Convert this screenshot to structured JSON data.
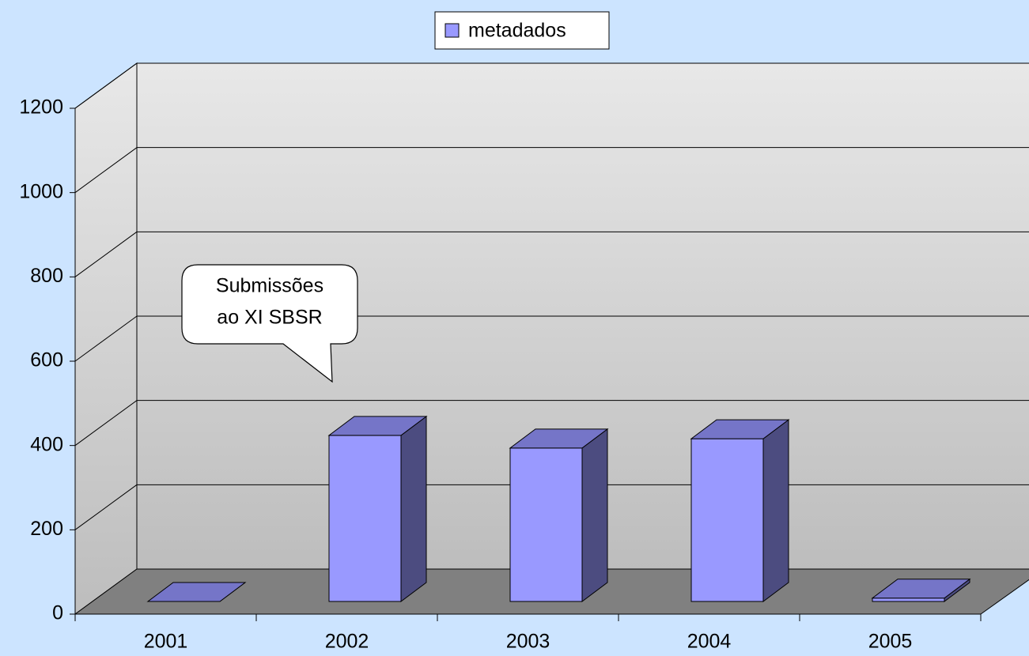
{
  "chart_data": {
    "type": "bar3d",
    "categories": [
      "2001",
      "2002",
      "2003",
      "2004",
      "2005"
    ],
    "series": [
      {
        "name": "metadados",
        "color": "#9999ff",
        "values": [
          0,
          394,
          364,
          386,
          8
        ]
      }
    ],
    "ylim": [
      0,
      1200
    ],
    "yticks": [
      0,
      200,
      400,
      600,
      800,
      1000,
      1200
    ],
    "grid": true,
    "legend": "top",
    "annotation": [
      "Submissões",
      "ao XI SBSR"
    ]
  }
}
